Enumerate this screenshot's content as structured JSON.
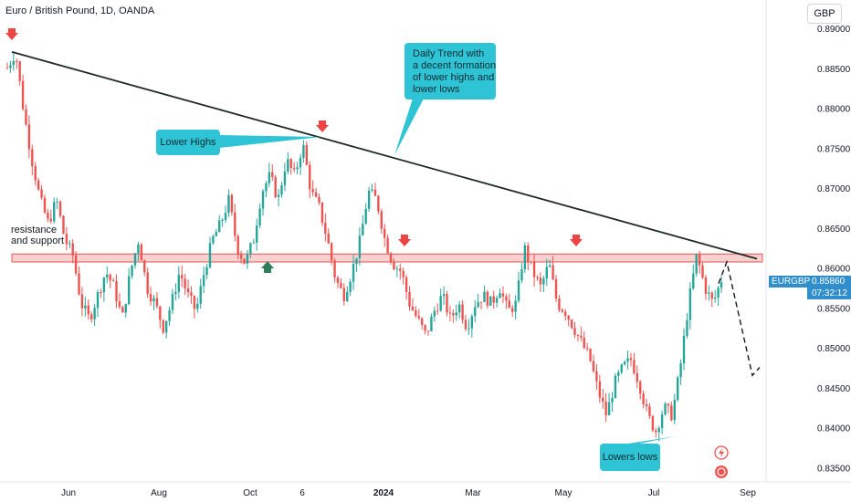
{
  "header": {
    "title": "Euro / British Pound, 1D, OANDA"
  },
  "currency_button": "GBP",
  "symbol_tag": {
    "symbol": "EURGBP",
    "price": "0.85860",
    "countdown": "07:32:12"
  },
  "annotations": {
    "resistance": "resistance\nand support",
    "lower_highs": "Lower Highs",
    "daily_trend": "Daily Trend with\na decent formation\nof lower highs and\nlower lows",
    "lowers_lows": "Lowers lows"
  },
  "colors": {
    "up": "#26a69a",
    "down": "#ef5350",
    "trendline": "#1f2a26",
    "zone_fill": "#f7c1c1",
    "zone_border": "#e05555",
    "callout": "#2ec4d6",
    "marker_down": "#ef4444",
    "marker_up": "#2e7d5b",
    "tag": "#2f8ecb"
  },
  "chart_data": {
    "type": "candlestick",
    "title": "Euro / British Pound, 1D, OANDA",
    "symbol": "EURGBP",
    "last_price": 0.8586,
    "ylim": [
      0.8335,
      0.8915
    ],
    "y_ticks": [
      "0.89000",
      "0.88500",
      "0.88000",
      "0.87500",
      "0.87000",
      "0.86500",
      "0.86000",
      "0.85500",
      "0.85000",
      "0.84500",
      "0.84000",
      "0.83500"
    ],
    "x_ticks": [
      "Jun",
      "Aug",
      "Oct",
      "6",
      "2024",
      "Mar",
      "May",
      "Jul",
      "Sep"
    ],
    "support_resistance_zone": [
      0.8612,
      0.8622
    ],
    "trendline": {
      "start": 0.8875,
      "end": 0.8616
    },
    "price_path": [
      0.8855,
      0.8875,
      0.88,
      0.874,
      0.869,
      0.866,
      0.869,
      0.864,
      0.862,
      0.856,
      0.854,
      0.857,
      0.86,
      0.858,
      0.854,
      0.86,
      0.864,
      0.858,
      0.856,
      0.853,
      0.856,
      0.86,
      0.857,
      0.855,
      0.86,
      0.864,
      0.866,
      0.869,
      0.863,
      0.861,
      0.864,
      0.87,
      0.872,
      0.869,
      0.874,
      0.872,
      0.876,
      0.87,
      0.868,
      0.864,
      0.859,
      0.857,
      0.86,
      0.864,
      0.87,
      0.869,
      0.864,
      0.861,
      0.86,
      0.856,
      0.854,
      0.852,
      0.855,
      0.857,
      0.854,
      0.856,
      0.853,
      0.856,
      0.857,
      0.856,
      0.858,
      0.855,
      0.856,
      0.863,
      0.86,
      0.858,
      0.861,
      0.856,
      0.855,
      0.853,
      0.851,
      0.849,
      0.845,
      0.842,
      0.846,
      0.848,
      0.849,
      0.846,
      0.842,
      0.84,
      0.843,
      0.842,
      0.848,
      0.856,
      0.862,
      0.858,
      0.856,
      0.859
    ],
    "projection": [
      0.8612,
      0.847,
      0.848
    ]
  }
}
